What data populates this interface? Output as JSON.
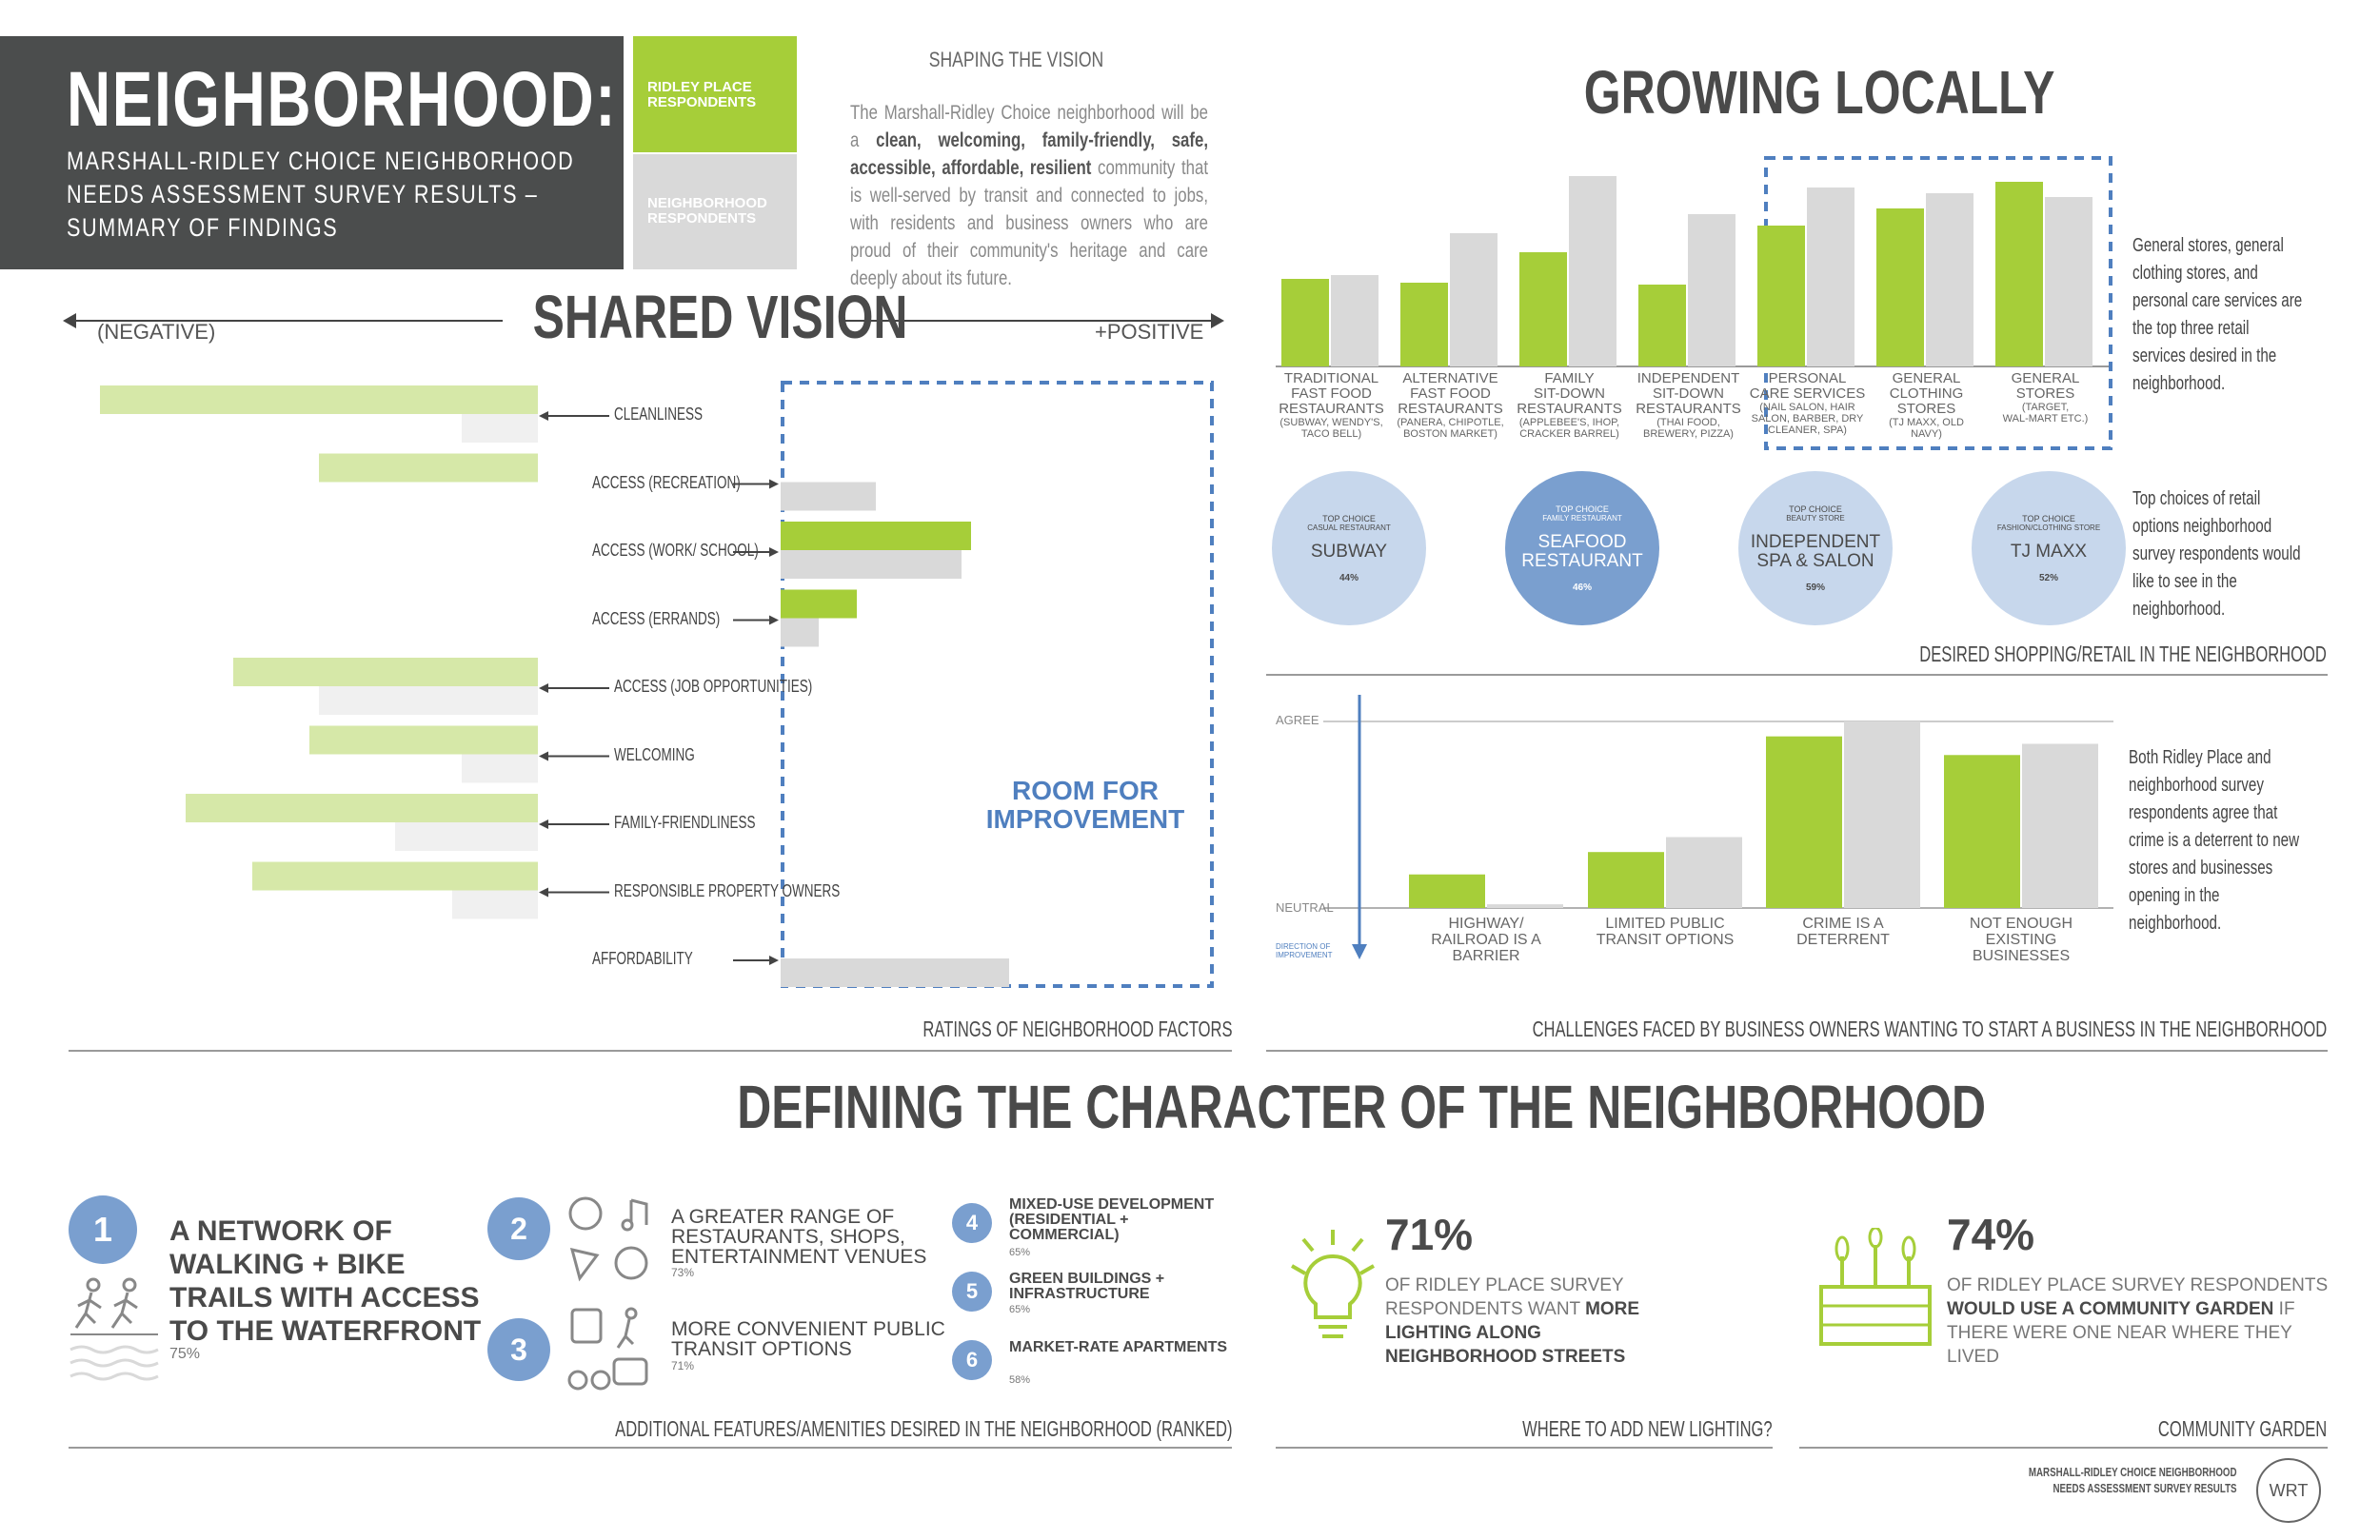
{
  "header": {
    "title": "NEIGHBORHOOD:",
    "subtitle_lines": [
      "MARSHALL-RIDLEY CHOICE NEIGHBORHOOD",
      "NEEDS ASSESSMENT SURVEY RESULTS –",
      "SUMMARY OF FINDINGS"
    ]
  },
  "legend": {
    "ridley": "RIDLEY PLACE RESPONDENTS",
    "neighborhood": "NEIGHBORHOOD RESPONDENTS",
    "green": "#a6ce39",
    "grey": "#d9d9d9"
  },
  "shaping": {
    "heading": "SHAPING THE VISION",
    "pre": "The Marshall-Ridley Choice neighborhood will be a ",
    "bold": "clean, welcoming, family-friendly, safe, accessible, affordable, resilient",
    "post": " community that is well-served by transit and connected to jobs, with residents and business owners who are proud of their community's heritage and care deeply about its future."
  },
  "shared_vision": {
    "title": "SHARED VISION",
    "negative": "(NEGATIVE)",
    "positive": "+POSITIVE",
    "room": "ROOM FOR IMPROVEMENT",
    "caption": "RATINGS OF NEIGHBORHOOD FACTORS",
    "accent": "#4f7fbf"
  },
  "chart_data": [
    {
      "type": "bar",
      "title": "RATINGS OF NEIGHBORHOOD FACTORS",
      "orientation": "horizontal-diverging",
      "categories": [
        "CLEANLINESS",
        "ACCESS (RECREATION)",
        "ACCESS (WORK/ SCHOOL)",
        "ACCESS (ERRANDS)",
        "ACCESS (JOB OPPORTUNITIES)",
        "WELCOMING",
        "FAMILY-FRIENDLINESS",
        "RESPONSIBLE PROPERTY OWNERS",
        "AFFORDABILITY"
      ],
      "series": [
        {
          "name": "RIDLEY PLACE RESPONDENTS",
          "values": [
            -46,
            -23,
            20,
            8,
            -32,
            -24,
            -37,
            -30,
            0
          ]
        },
        {
          "name": "NEIGHBORHOOD RESPONDENTS",
          "values": [
            -8,
            10,
            19,
            4,
            -23,
            -8,
            -15,
            -9,
            24
          ]
        }
      ]
    },
    {
      "type": "bar",
      "title": "DESIRED SHOPPING/RETAIL IN THE NEIGHBORHOOD",
      "categories": [
        "TRADITIONAL FAST FOOD RESTAURANTS",
        "ALTERNATIVE FAST FOOD RESTAURANTS",
        "FAMILY SIT-DOWN RESTAURANTS",
        "INDEPENDENT SIT-DOWN RESTAURANTS",
        "PERSONAL CARE SERVICES",
        "GENERAL CLOTHING STORES",
        "GENERAL STORES"
      ],
      "series": [
        {
          "name": "RIDLEY PLACE RESPONDENTS",
          "values": [
            46,
            44,
            60,
            43,
            74,
            83,
            97
          ]
        },
        {
          "name": "NEIGHBORHOOD RESPONDENTS",
          "values": [
            48,
            70,
            100,
            80,
            94,
            91,
            89
          ]
        }
      ]
    },
    {
      "type": "bar",
      "title": "CHALLENGES FACED BY BUSINESS OWNERS WANTING TO START A BUSINESS IN THE NEIGHBORHOOD",
      "categories": [
        "HIGHWAY/ RAILROAD IS A BARRIER",
        "LIMITED PUBLIC TRANSIT OPTIONS",
        "CRIME IS A DETERRENT",
        "NOT ENOUGH EXISTING BUSINESSES"
      ],
      "series": [
        {
          "name": "RIDLEY PLACE RESPONDENTS",
          "values": [
            18,
            30,
            92,
            82
          ]
        },
        {
          "name": "NEIGHBORHOOD RESPONDENTS",
          "values": [
            2,
            38,
            100,
            88
          ]
        }
      ]
    }
  ],
  "retail": {
    "title": "GROWING LOCALLY",
    "labels": [
      {
        "main": [
          "TRADITIONAL",
          "FAST FOOD",
          "RESTAURANTS"
        ],
        "sub": [
          "(SUBWAY, WENDY'S,",
          "TACO BELL)"
        ]
      },
      {
        "main": [
          "ALTERNATIVE",
          "FAST FOOD",
          "RESTAURANTS"
        ],
        "sub": [
          "(PANERA, CHIPOTLE,",
          "BOSTON MARKET)"
        ]
      },
      {
        "main": [
          "FAMILY",
          "SIT-DOWN",
          "RESTAURANTS"
        ],
        "sub": [
          "(APPLEBEE'S, IHOP,",
          "CRACKER BARREL)"
        ]
      },
      {
        "main": [
          "INDEPENDENT",
          "SIT-DOWN",
          "RESTAURANTS"
        ],
        "sub": [
          "(THAI FOOD,",
          "BREWERY, PIZZA)"
        ]
      },
      {
        "main": [
          "PERSONAL",
          "CARE SERVICES"
        ],
        "sub": [
          "(NAIL SALON, HAIR",
          "SALON, BARBER, DRY",
          "CLEANER, SPA)"
        ]
      },
      {
        "main": [
          "GENERAL",
          "CLOTHING",
          "STORES"
        ],
        "sub": [
          "(TJ MAXX, OLD",
          "NAVY)"
        ]
      },
      {
        "main": [
          "GENERAL",
          "STORES"
        ],
        "sub": [
          "(TARGET,",
          "WAL-MART ETC.)"
        ]
      }
    ],
    "note": "General stores, general clothing stores, and personal care services are the top three retail services desired in the neighborhood.",
    "choices": [
      {
        "tag": "TOP CHOICE",
        "type": "CASUAL RESTAURANT",
        "name": "SUBWAY",
        "pct": "44%",
        "dark": false
      },
      {
        "tag": "TOP CHOICE",
        "type": "FAMILY RESTAURANT",
        "name": "SEAFOOD RESTAURANT",
        "pct": "46%",
        "dark": true
      },
      {
        "tag": "TOP CHOICE",
        "type": "BEAUTY STORE",
        "name": "INDEPENDENT SPA & SALON",
        "pct": "59%",
        "dark": false
      },
      {
        "tag": "TOP CHOICE",
        "type": "FASHION/CLOTHING STORE",
        "name": "TJ MAXX",
        "pct": "52%",
        "dark": false
      }
    ],
    "choices_note": "Top choices of retail options neighborhood survey respondents would like to see in the neighborhood.",
    "caption": "DESIRED SHOPPING/RETAIL IN THE NEIGHBORHOOD"
  },
  "challenges": {
    "agree": "AGREE",
    "neutral": "NEUTRAL",
    "direction": "DIRECTION OF IMPROVEMENT",
    "labels": [
      [
        "HIGHWAY/",
        "RAILROAD IS A",
        "BARRIER"
      ],
      [
        "LIMITED PUBLIC",
        "TRANSIT OPTIONS"
      ],
      [
        "CRIME IS A",
        "DETERRENT"
      ],
      [
        "NOT ENOUGH",
        "EXISTING",
        "BUSINESSES"
      ]
    ],
    "note": "Both Ridley Place and neighborhood survey respondents agree that crime is a deterrent to new stores and businesses opening in the neighborhood.",
    "caption": "CHALLENGES FACED BY BUSINESS OWNERS WANTING TO START A BUSINESS IN THE NEIGHBORHOOD"
  },
  "character": {
    "title": "DEFINING THE CHARACTER OF THE NEIGHBORHOOD",
    "features": [
      {
        "num": "1",
        "label": "A NETWORK OF WALKING + BIKE TRAILS WITH ACCESS TO THE WATERFRONT",
        "pct": "75%"
      },
      {
        "num": "2",
        "label": "A GREATER RANGE OF RESTAURANTS, SHOPS, ENTERTAINMENT VENUES",
        "pct": "73%"
      },
      {
        "num": "3",
        "label": "MORE CONVENIENT PUBLIC TRANSIT OPTIONS",
        "pct": "71%"
      },
      {
        "num": "4",
        "label": "MIXED-USE DEVELOPMENT (RESIDENTIAL + COMMERCIAL)",
        "pct": "65%"
      },
      {
        "num": "5",
        "label": "GREEN BUILDINGS + INFRASTRUCTURE",
        "pct": "65%"
      },
      {
        "num": "6",
        "label": "MARKET-RATE APARTMENTS",
        "pct": "58%"
      }
    ],
    "features_caption": "ADDITIONAL FEATURES/AMENITIES DESIRED IN THE NEIGHBORHOOD (RANKED)",
    "lighting": {
      "pct": "71%",
      "pre": "OF RIDLEY PLACE SURVEY RESPONDENTS WANT ",
      "bold": "MORE LIGHTING ALONG NEIGHBORHOOD STREETS",
      "caption": "WHERE TO ADD NEW LIGHTING?"
    },
    "garden": {
      "pct": "74%",
      "pre": "OF RIDLEY PLACE SURVEY RESPONDENTS ",
      "bold": "WOULD USE A COMMUNITY GARDEN",
      "post": " IF THERE WERE ONE NEAR WHERE THEY LIVED",
      "caption": "COMMUNITY GARDEN"
    }
  },
  "footer": {
    "lines": [
      "MARSHALL-RIDLEY CHOICE NEIGHBORHOOD",
      "NEEDS ASSESSMENT SURVEY RESULTS"
    ],
    "logo": "WRT"
  }
}
